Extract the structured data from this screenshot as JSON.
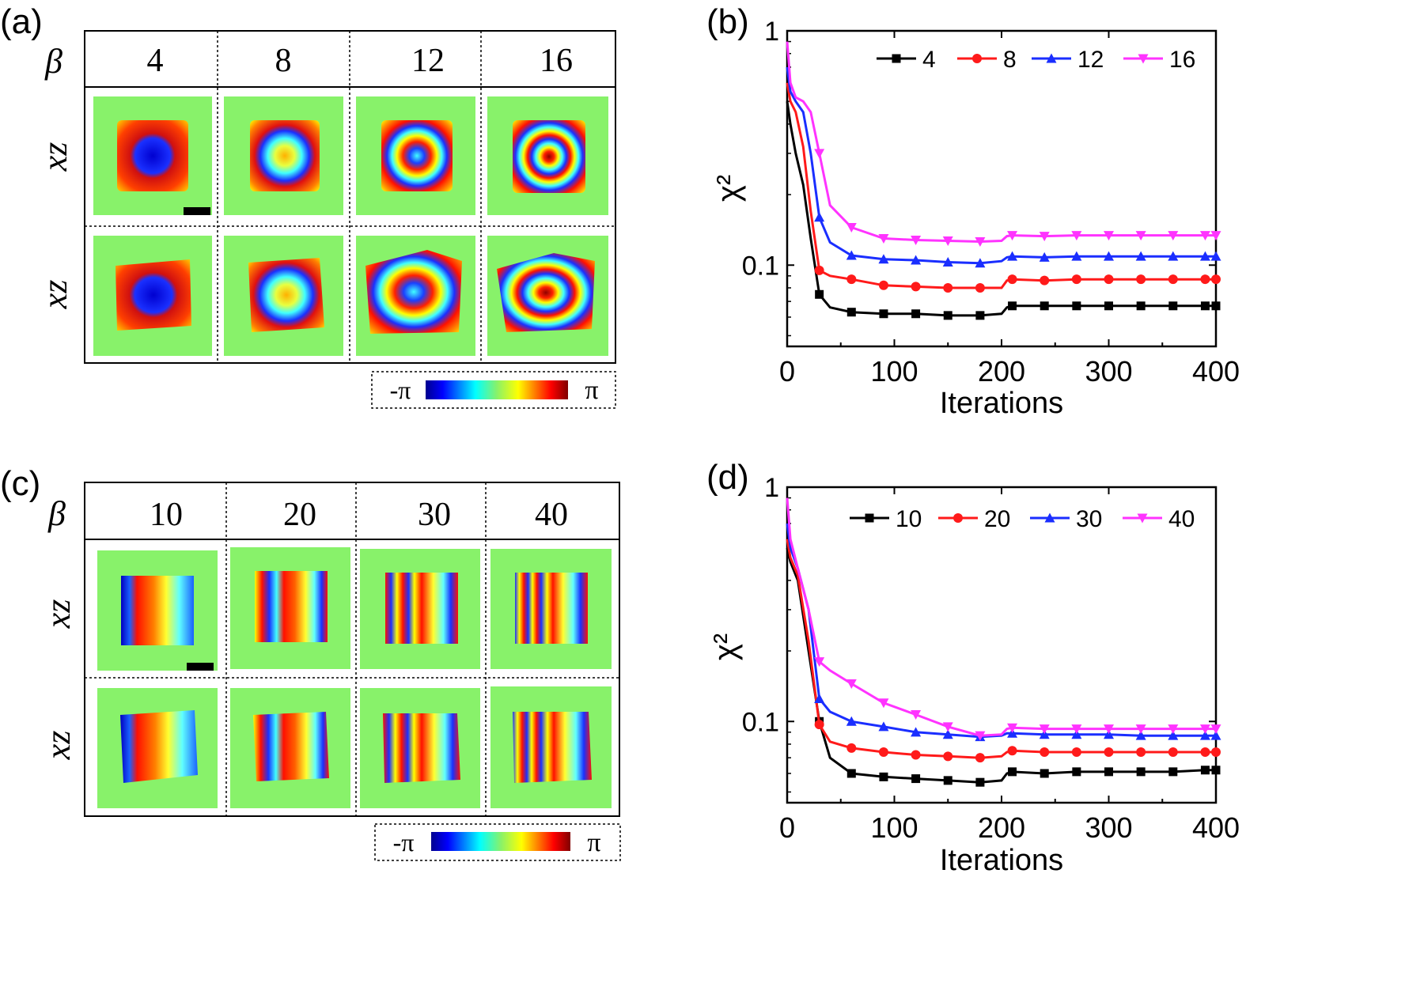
{
  "panels": {
    "a": {
      "label": "(a)",
      "beta_symbol": "β",
      "columns": [
        "4",
        "8",
        "12",
        "16"
      ],
      "row_labels": [
        "xz",
        "xz"
      ],
      "colorbar": {
        "min_label": "-π",
        "max_label": "π"
      }
    },
    "c": {
      "label": "(c)",
      "beta_symbol": "β",
      "columns": [
        "10",
        "20",
        "30",
        "40"
      ],
      "row_labels": [
        "xz",
        "xz"
      ],
      "colorbar": {
        "min_label": "-π",
        "max_label": "π"
      }
    }
  },
  "colors": {
    "phase_background": "#88f26a",
    "series": [
      "#000000",
      "#ff1a1a",
      "#1a2eff",
      "#ff33ff"
    ]
  },
  "chart_data": [
    {
      "panel": "(b)",
      "type": "line",
      "yscale": "log",
      "title": "",
      "xlabel": "Iterations",
      "ylabel": "χ²",
      "xlim": [
        0,
        400
      ],
      "ylim": [
        0.045,
        1
      ],
      "x_ticks": [
        "0",
        "100",
        "200",
        "300",
        "400"
      ],
      "y_ticks": [
        "0.1",
        "1"
      ],
      "legend_position": "top-right",
      "series": [
        {
          "name": "4",
          "marker": "square",
          "x": [
            0,
            3,
            8,
            15,
            22,
            30,
            40,
            60,
            90,
            120,
            150,
            180,
            200,
            205,
            210,
            240,
            270,
            300,
            330,
            360,
            390,
            400
          ],
          "y": [
            0.5,
            0.4,
            0.3,
            0.22,
            0.13,
            0.075,
            0.066,
            0.063,
            0.062,
            0.062,
            0.061,
            0.061,
            0.062,
            0.066,
            0.067,
            0.067,
            0.067,
            0.067,
            0.067,
            0.067,
            0.067,
            0.067
          ]
        },
        {
          "name": "8",
          "marker": "circle",
          "x": [
            0,
            3,
            8,
            15,
            22,
            30,
            40,
            60,
            90,
            120,
            150,
            180,
            200,
            205,
            210,
            240,
            270,
            300,
            330,
            360,
            390,
            400
          ],
          "y": [
            0.6,
            0.5,
            0.45,
            0.32,
            0.17,
            0.095,
            0.09,
            0.087,
            0.082,
            0.081,
            0.08,
            0.08,
            0.08,
            0.086,
            0.087,
            0.086,
            0.087,
            0.087,
            0.087,
            0.087,
            0.087,
            0.087
          ]
        },
        {
          "name": "12",
          "marker": "triangle-up",
          "x": [
            0,
            3,
            8,
            15,
            22,
            30,
            40,
            60,
            90,
            120,
            150,
            180,
            200,
            205,
            210,
            240,
            270,
            300,
            330,
            360,
            390,
            400
          ],
          "y": [
            0.7,
            0.55,
            0.5,
            0.45,
            0.3,
            0.16,
            0.125,
            0.11,
            0.106,
            0.105,
            0.103,
            0.102,
            0.104,
            0.108,
            0.109,
            0.108,
            0.109,
            0.109,
            0.109,
            0.109,
            0.109,
            0.109
          ]
        },
        {
          "name": "16",
          "marker": "triangle-down",
          "x": [
            0,
            3,
            8,
            15,
            22,
            30,
            40,
            60,
            90,
            120,
            150,
            180,
            200,
            205,
            210,
            240,
            270,
            300,
            330,
            360,
            390,
            400
          ],
          "y": [
            0.9,
            0.6,
            0.52,
            0.5,
            0.45,
            0.3,
            0.18,
            0.145,
            0.13,
            0.128,
            0.127,
            0.126,
            0.127,
            0.133,
            0.134,
            0.133,
            0.134,
            0.134,
            0.134,
            0.134,
            0.134,
            0.134
          ]
        }
      ]
    },
    {
      "panel": "(d)",
      "type": "line",
      "yscale": "log",
      "title": "",
      "xlabel": "Iterations",
      "ylabel": "χ²",
      "xlim": [
        0,
        400
      ],
      "ylim": [
        0.045,
        1
      ],
      "x_ticks": [
        "0",
        "100",
        "200",
        "300",
        "400"
      ],
      "y_ticks": [
        "0.1",
        "1"
      ],
      "legend_position": "top-right",
      "series": [
        {
          "name": "10",
          "marker": "square",
          "x": [
            0,
            3,
            10,
            20,
            30,
            40,
            60,
            90,
            120,
            150,
            180,
            200,
            205,
            210,
            240,
            270,
            300,
            330,
            360,
            390,
            400
          ],
          "y": [
            0.55,
            0.48,
            0.4,
            0.2,
            0.1,
            0.07,
            0.06,
            0.058,
            0.057,
            0.056,
            0.055,
            0.056,
            0.06,
            0.061,
            0.06,
            0.061,
            0.061,
            0.061,
            0.061,
            0.062,
            0.062
          ]
        },
        {
          "name": "20",
          "marker": "circle",
          "x": [
            0,
            3,
            10,
            20,
            30,
            40,
            60,
            90,
            120,
            150,
            180,
            200,
            205,
            210,
            240,
            270,
            300,
            330,
            360,
            390,
            400
          ],
          "y": [
            0.6,
            0.5,
            0.42,
            0.22,
            0.097,
            0.082,
            0.077,
            0.074,
            0.072,
            0.071,
            0.07,
            0.071,
            0.074,
            0.075,
            0.074,
            0.074,
            0.074,
            0.074,
            0.074,
            0.074,
            0.074
          ]
        },
        {
          "name": "30",
          "marker": "triangle-up",
          "x": [
            0,
            3,
            10,
            20,
            30,
            40,
            60,
            90,
            120,
            150,
            180,
            200,
            205,
            210,
            240,
            270,
            300,
            330,
            360,
            390,
            400
          ],
          "y": [
            0.7,
            0.55,
            0.45,
            0.3,
            0.125,
            0.11,
            0.1,
            0.095,
            0.09,
            0.088,
            0.086,
            0.087,
            0.089,
            0.089,
            0.088,
            0.088,
            0.088,
            0.087,
            0.087,
            0.087,
            0.087
          ]
        },
        {
          "name": "40",
          "marker": "triangle-down",
          "x": [
            0,
            3,
            10,
            20,
            30,
            40,
            60,
            90,
            120,
            150,
            180,
            200,
            205,
            210,
            240,
            270,
            300,
            330,
            360,
            390,
            400
          ],
          "y": [
            0.9,
            0.6,
            0.45,
            0.3,
            0.18,
            0.165,
            0.145,
            0.12,
            0.107,
            0.095,
            0.087,
            0.088,
            0.093,
            0.094,
            0.093,
            0.093,
            0.093,
            0.093,
            0.093,
            0.093,
            0.093
          ]
        }
      ]
    }
  ]
}
